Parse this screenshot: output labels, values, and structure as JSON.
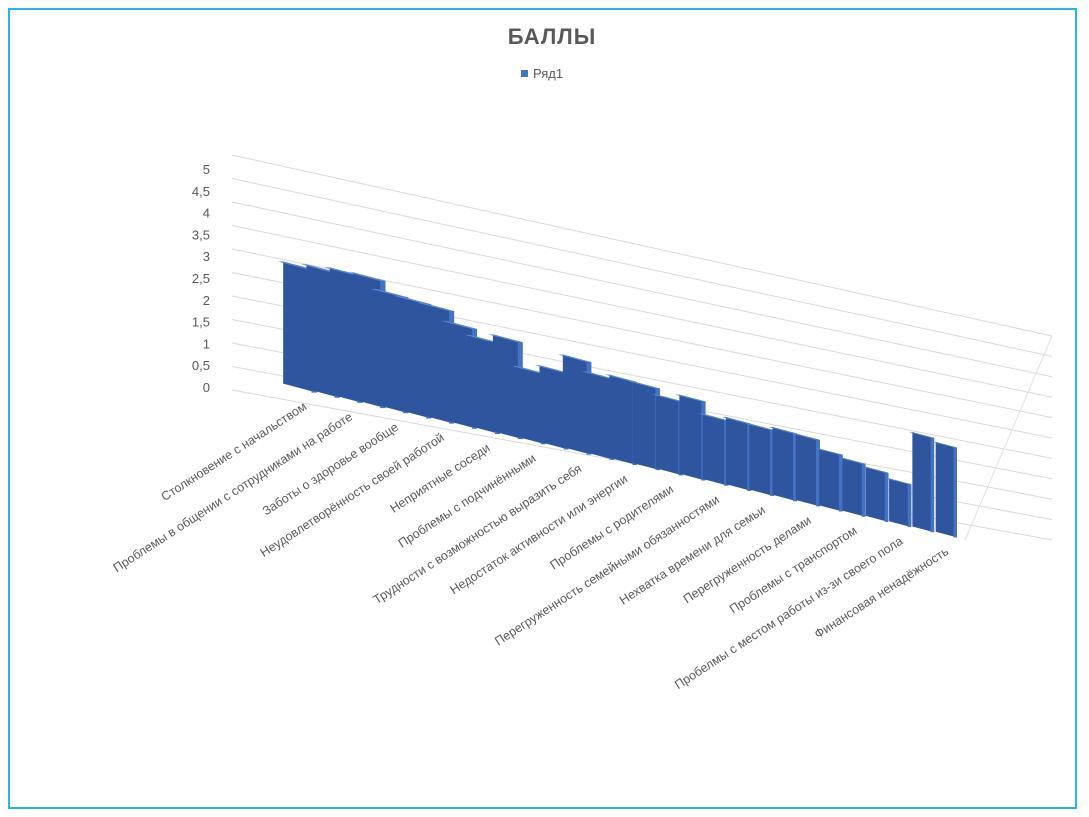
{
  "chart_data": {
    "type": "bar",
    "title": "БАЛЛЫ",
    "legend": {
      "position": "top",
      "entries": [
        "Ряд1"
      ]
    },
    "series": [
      {
        "name": "Ряд1",
        "color": "#4472c4",
        "values": [
          3.0,
          3.1,
          3.2,
          3.25,
          3.0,
          3.0,
          3.0,
          2.7,
          2.5,
          2.7,
          2.0,
          2.2,
          2.7,
          2.4,
          2.5,
          2.5,
          2.3,
          2.5,
          2.1,
          2.2,
          2.2,
          2.3,
          2.3,
          2.0,
          1.9,
          1.8,
          1.6,
          3.6,
          3.5
        ]
      }
    ],
    "categories": [
      "Столкновение с начальством",
      "",
      "Проблемы в общении с сотрудниками на работе",
      "",
      "Заботы о здоровье вообще",
      "",
      "Неудовлетворённость своей работой",
      "",
      "Неприятные соседи",
      "",
      "Проблемы с подчинёнными",
      "",
      "Трудности с возможностью выразить себя",
      "",
      "Недостаток активности или энергии",
      "",
      "Проблемы с родителями",
      "",
      "Перегруженность семейными обязанностями",
      "",
      "Нехватка времени для семьи",
      "",
      "Перегруженность делами",
      "",
      "Проблемы с транспортом",
      "",
      "Пробелмы с местом работы из-зи своего пола",
      "",
      "Финансовая ненадёжность"
    ],
    "yticks": [
      "0",
      "0,5",
      "1",
      "1,5",
      "2",
      "2,5",
      "3",
      "3,5",
      "4",
      "4,5",
      "5"
    ],
    "ylim": [
      0,
      5
    ],
    "grid": true,
    "xlabel": "",
    "ylabel": ""
  }
}
